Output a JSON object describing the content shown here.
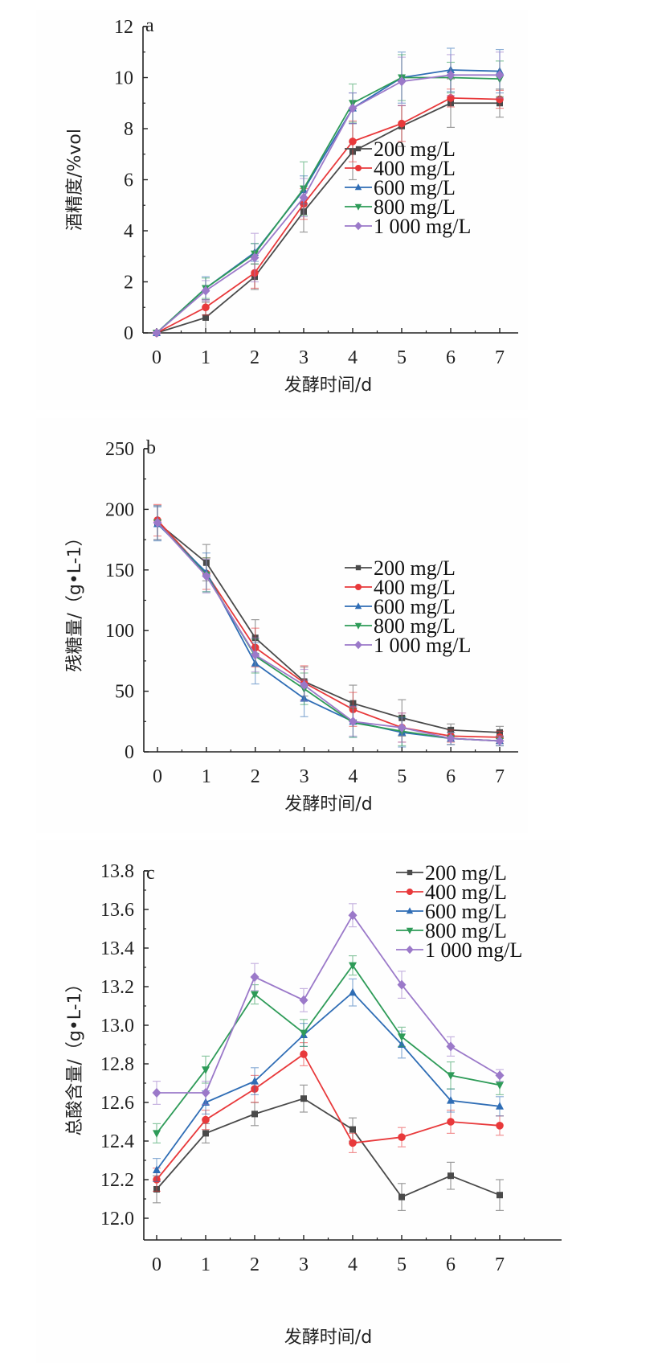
{
  "chart_data": [
    {
      "type": "line",
      "panel_label": "a",
      "title": "",
      "xlabel": "发酵时间/d",
      "ylabel": "酒精度/%vol",
      "x": [
        0,
        1,
        2,
        3,
        4,
        5,
        6,
        7
      ],
      "xticks": [
        "0",
        "1",
        "2",
        "3",
        "4",
        "5",
        "6",
        "7"
      ],
      "ylim": [
        0,
        12
      ],
      "yticks": [
        "0",
        "2",
        "4",
        "6",
        "8",
        "10",
        "12"
      ],
      "ytick_values": [
        0,
        2,
        4,
        6,
        8,
        10,
        12
      ],
      "grid": false,
      "legend_position": "center-right",
      "series": [
        {
          "name": "200 mg/L",
          "color": "#4a4a4a",
          "marker": "square",
          "values": [
            0,
            0.6,
            2.2,
            4.75,
            7.1,
            8.1,
            9.0,
            9.0
          ],
          "errors": [
            0,
            0.6,
            0.5,
            0.8,
            1.1,
            0.8,
            0.95,
            0.55
          ]
        },
        {
          "name": "400 mg/L",
          "color": "#e8393b",
          "marker": "circle",
          "values": [
            0,
            1.0,
            2.35,
            5.05,
            7.5,
            8.2,
            9.2,
            9.15
          ],
          "errors": [
            0,
            0.3,
            0.6,
            0.6,
            0.8,
            0.7,
            0.35,
            0.35
          ]
        },
        {
          "name": "600 mg/L",
          "color": "#2f6db5",
          "marker": "triangle-up",
          "values": [
            0,
            1.75,
            3.15,
            5.6,
            8.8,
            10.0,
            10.3,
            10.25
          ],
          "errors": [
            0,
            0.45,
            0.35,
            0.55,
            0.6,
            1.0,
            0.85,
            0.85
          ]
        },
        {
          "name": "800 mg/L",
          "color": "#2e9b58",
          "marker": "triangle-down",
          "values": [
            0,
            1.75,
            3.1,
            5.65,
            9.0,
            10.0,
            10.0,
            9.95
          ],
          "errors": [
            0,
            0.4,
            0.4,
            1.05,
            0.75,
            0.9,
            0.6,
            0.7
          ]
        },
        {
          "name": "1 000 mg/L",
          "color": "#9b79c9",
          "marker": "diamond",
          "values": [
            0,
            1.65,
            2.95,
            5.3,
            8.8,
            9.85,
            10.1,
            10.1
          ],
          "errors": [
            0,
            0.4,
            0.95,
            0.75,
            0.6,
            0.95,
            0.8,
            0.9
          ]
        }
      ]
    },
    {
      "type": "line",
      "panel_label": "b",
      "title": "",
      "xlabel": "发酵时间/d",
      "ylabel": "残糖量/（g•L-1）",
      "x": [
        0,
        1,
        2,
        3,
        4,
        5,
        6,
        7
      ],
      "xticks": [
        "0",
        "1",
        "2",
        "3",
        "4",
        "5",
        "6",
        "7"
      ],
      "ylim": [
        0,
        250
      ],
      "yticks": [
        "0",
        "50",
        "100",
        "150",
        "200",
        "250"
      ],
      "ytick_values": [
        0,
        50,
        100,
        150,
        200,
        250
      ],
      "grid": false,
      "legend_position": "center-right",
      "series": [
        {
          "name": "200 mg/L",
          "color": "#4a4a4a",
          "marker": "square",
          "values": [
            189,
            156,
            94,
            58,
            40,
            28,
            18,
            16
          ],
          "errors": [
            14,
            15,
            15,
            12,
            15,
            15,
            5,
            5
          ]
        },
        {
          "name": "400 mg/L",
          "color": "#e8393b",
          "marker": "circle",
          "values": [
            191,
            147,
            86,
            57,
            35,
            20,
            13,
            12
          ],
          "errors": [
            13,
            13,
            16,
            14,
            14,
            12,
            5,
            5
          ]
        },
        {
          "name": "600 mg/L",
          "color": "#2f6db5",
          "marker": "triangle-up",
          "values": [
            188,
            148,
            73,
            44,
            25,
            16,
            11,
            9
          ],
          "errors": [
            14,
            16,
            17,
            15,
            13,
            12,
            5,
            4
          ]
        },
        {
          "name": "800 mg/L",
          "color": "#2e9b58",
          "marker": "triangle-down",
          "values": [
            189,
            146,
            79,
            52,
            24,
            17,
            11,
            9
          ],
          "errors": [
            14,
            14,
            14,
            13,
            12,
            12,
            5,
            4
          ]
        },
        {
          "name": "1 000 mg/L",
          "color": "#9b79c9",
          "marker": "diamond",
          "values": [
            189,
            145,
            80,
            55,
            25,
            20,
            11,
            9
          ],
          "errors": [
            14,
            14,
            14,
            13,
            12,
            12,
            5,
            4
          ]
        }
      ]
    },
    {
      "type": "line",
      "panel_label": "c",
      "title": "",
      "xlabel": "发酵时间/d",
      "ylabel": "总酸含量/（g•L-1）",
      "x": [
        0,
        1,
        2,
        3,
        4,
        5,
        6,
        7
      ],
      "xticks": [
        "0",
        "1",
        "2",
        "3",
        "4",
        "5",
        "6",
        "7"
      ],
      "ylim": [
        11.9,
        13.8
      ],
      "yticks": [
        "12.0",
        "12.2",
        "12.4",
        "12.6",
        "12.8",
        "13.0",
        "13.2",
        "13.4",
        "13.6",
        "13.8"
      ],
      "ytick_values": [
        12.0,
        12.2,
        12.4,
        12.6,
        12.8,
        13.0,
        13.2,
        13.4,
        13.6,
        13.8
      ],
      "grid": false,
      "legend_position": "top-right",
      "series": [
        {
          "name": "200 mg/L",
          "color": "#4a4a4a",
          "marker": "square",
          "values": [
            12.15,
            12.44,
            12.54,
            12.62,
            12.46,
            12.11,
            12.22,
            12.12
          ],
          "errors": [
            0.07,
            0.05,
            0.06,
            0.07,
            0.06,
            0.07,
            0.07,
            0.08
          ]
        },
        {
          "name": "400 mg/L",
          "color": "#e8393b",
          "marker": "circle",
          "values": [
            12.2,
            12.51,
            12.67,
            12.85,
            12.39,
            12.42,
            12.5,
            12.48
          ],
          "errors": [
            0.06,
            0.05,
            0.07,
            0.06,
            0.05,
            0.05,
            0.06,
            0.05
          ]
        },
        {
          "name": "600 mg/L",
          "color": "#2f6db5",
          "marker": "triangle-up",
          "values": [
            12.25,
            12.6,
            12.71,
            12.95,
            13.17,
            12.9,
            12.61,
            12.58
          ],
          "errors": [
            0.06,
            0.06,
            0.07,
            0.06,
            0.07,
            0.07,
            0.06,
            0.05
          ]
        },
        {
          "name": "800 mg/L",
          "color": "#2e9b58",
          "marker": "triangle-down",
          "values": [
            12.44,
            12.77,
            13.16,
            12.96,
            13.31,
            12.94,
            12.74,
            12.69
          ],
          "errors": [
            0.05,
            0.07,
            0.05,
            0.07,
            0.05,
            0.05,
            0.07,
            0.05
          ]
        },
        {
          "name": "1 000 mg/L",
          "color": "#9b79c9",
          "marker": "diamond",
          "values": [
            12.65,
            12.65,
            13.25,
            13.13,
            13.57,
            13.21,
            12.89,
            12.74
          ],
          "errors": [
            0.06,
            0.06,
            0.07,
            0.06,
            0.06,
            0.07,
            0.05,
            0.03
          ]
        }
      ]
    }
  ]
}
